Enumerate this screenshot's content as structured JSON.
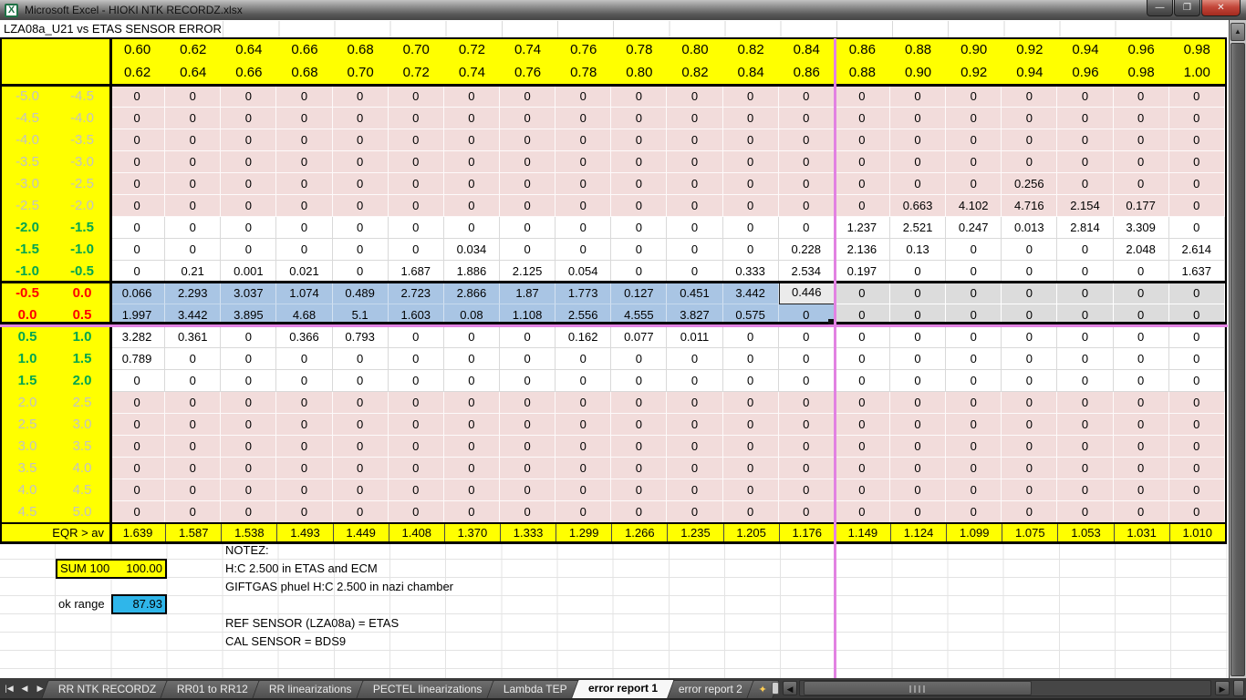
{
  "window": {
    "title": "Microsoft Excel - HIOKI NTK RECORDZ.xlsx",
    "minimize": "—",
    "restore": "❐",
    "close": "✕"
  },
  "sheet_title": "LZA08a_U21 vs ETAS SENSOR ERROR",
  "colors": {
    "header_yellow": "#ffff00",
    "zone_pink": "#f2dcdb",
    "selection_blue": "#a9c5e4",
    "inactive_gray": "#dcdcdc",
    "ok_cyan": "#2fb6ea",
    "pagebreak_magenta": "#e282e2",
    "label_gray": "#c3c3c3",
    "label_green": "#00a550",
    "label_red": "#fd0000"
  },
  "table": {
    "col_headers_top": [
      "0.60",
      "0.62",
      "0.64",
      "0.66",
      "0.68",
      "0.70",
      "0.72",
      "0.74",
      "0.76",
      "0.78",
      "0.80",
      "0.82",
      "0.84",
      "0.86",
      "0.88",
      "0.90",
      "0.92",
      "0.94",
      "0.96",
      "0.98"
    ],
    "col_headers_bottom": [
      "0.62",
      "0.64",
      "0.66",
      "0.68",
      "0.70",
      "0.72",
      "0.74",
      "0.76",
      "0.78",
      "0.80",
      "0.82",
      "0.84",
      "0.86",
      "0.88",
      "0.90",
      "0.92",
      "0.94",
      "0.96",
      "0.98",
      "1.00"
    ],
    "split_after_col": 13,
    "rows": [
      {
        "from": "-5.0",
        "to": "-4.5",
        "zone": "pink",
        "label_color": "gray",
        "values": [
          "0",
          "0",
          "0",
          "0",
          "0",
          "0",
          "0",
          "0",
          "0",
          "0",
          "0",
          "0",
          "0",
          "0",
          "0",
          "0",
          "0",
          "0",
          "0",
          "0"
        ]
      },
      {
        "from": "-4.5",
        "to": "-4.0",
        "zone": "pink",
        "label_color": "gray",
        "values": [
          "0",
          "0",
          "0",
          "0",
          "0",
          "0",
          "0",
          "0",
          "0",
          "0",
          "0",
          "0",
          "0",
          "0",
          "0",
          "0",
          "0",
          "0",
          "0",
          "0"
        ]
      },
      {
        "from": "-4.0",
        "to": "-3.5",
        "zone": "pink",
        "label_color": "gray",
        "values": [
          "0",
          "0",
          "0",
          "0",
          "0",
          "0",
          "0",
          "0",
          "0",
          "0",
          "0",
          "0",
          "0",
          "0",
          "0",
          "0",
          "0",
          "0",
          "0",
          "0"
        ]
      },
      {
        "from": "-3.5",
        "to": "-3.0",
        "zone": "pink",
        "label_color": "gray",
        "values": [
          "0",
          "0",
          "0",
          "0",
          "0",
          "0",
          "0",
          "0",
          "0",
          "0",
          "0",
          "0",
          "0",
          "0",
          "0",
          "0",
          "0",
          "0",
          "0",
          "0"
        ]
      },
      {
        "from": "-3.0",
        "to": "-2.5",
        "zone": "pink",
        "label_color": "gray",
        "values": [
          "0",
          "0",
          "0",
          "0",
          "0",
          "0",
          "0",
          "0",
          "0",
          "0",
          "0",
          "0",
          "0",
          "0",
          "0",
          "0",
          "0.256",
          "0",
          "0",
          "0"
        ]
      },
      {
        "from": "-2.5",
        "to": "-2.0",
        "zone": "pink",
        "label_color": "gray",
        "values": [
          "0",
          "0",
          "0",
          "0",
          "0",
          "0",
          "0",
          "0",
          "0",
          "0",
          "0",
          "0",
          "0",
          "0",
          "0.663",
          "4.102",
          "4.716",
          "2.154",
          "0.177",
          "0"
        ]
      },
      {
        "from": "-2.0",
        "to": "-1.5",
        "zone": "white",
        "label_color": "green",
        "values": [
          "0",
          "0",
          "0",
          "0",
          "0",
          "0",
          "0",
          "0",
          "0",
          "0",
          "0",
          "0",
          "0",
          "1.237",
          "2.521",
          "0.247",
          "0.013",
          "2.814",
          "3.309",
          "0"
        ]
      },
      {
        "from": "-1.5",
        "to": "-1.0",
        "zone": "white",
        "label_color": "green",
        "values": [
          "0",
          "0",
          "0",
          "0",
          "0",
          "0",
          "0.034",
          "0",
          "0",
          "0",
          "0",
          "0",
          "0.228",
          "2.136",
          "0.13",
          "0",
          "0",
          "0",
          "2.048",
          "2.614"
        ]
      },
      {
        "from": "-1.0",
        "to": "-0.5",
        "zone": "white",
        "label_color": "green",
        "values": [
          "0",
          "0.21",
          "0.001",
          "0.021",
          "0",
          "1.687",
          "1.886",
          "2.125",
          "0.054",
          "0",
          "0",
          "0.333",
          "2.534",
          "0.197",
          "0",
          "0",
          "0",
          "0",
          "0",
          "1.637"
        ]
      },
      {
        "from": "-0.5",
        "to": "0.0",
        "zone": "sel",
        "label_color": "red",
        "values": [
          "0.066",
          "2.293",
          "3.037",
          "1.074",
          "0.489",
          "2.723",
          "2.866",
          "1.87",
          "1.773",
          "0.127",
          "0.451",
          "3.442",
          "0.446",
          "0",
          "0",
          "0",
          "0",
          "0",
          "0",
          "0"
        ]
      },
      {
        "from": "0.0",
        "to": "0.5",
        "zone": "sel",
        "label_color": "red",
        "values": [
          "1.997",
          "3.442",
          "3.895",
          "4.68",
          "5.1",
          "1.603",
          "0.08",
          "1.108",
          "2.556",
          "4.555",
          "3.827",
          "0.575",
          "0",
          "0",
          "0",
          "0",
          "0",
          "0",
          "0",
          "0"
        ]
      },
      {
        "from": "0.5",
        "to": "1.0",
        "zone": "white",
        "label_color": "green",
        "values": [
          "3.282",
          "0.361",
          "0",
          "0.366",
          "0.793",
          "0",
          "0",
          "0",
          "0.162",
          "0.077",
          "0.011",
          "0",
          "0",
          "0",
          "0",
          "0",
          "0",
          "0",
          "0",
          "0"
        ]
      },
      {
        "from": "1.0",
        "to": "1.5",
        "zone": "white",
        "label_color": "green",
        "values": [
          "0.789",
          "0",
          "0",
          "0",
          "0",
          "0",
          "0",
          "0",
          "0",
          "0",
          "0",
          "0",
          "0",
          "0",
          "0",
          "0",
          "0",
          "0",
          "0",
          "0"
        ]
      },
      {
        "from": "1.5",
        "to": "2.0",
        "zone": "white",
        "label_color": "green",
        "values": [
          "0",
          "0",
          "0",
          "0",
          "0",
          "0",
          "0",
          "0",
          "0",
          "0",
          "0",
          "0",
          "0",
          "0",
          "0",
          "0",
          "0",
          "0",
          "0",
          "0"
        ]
      },
      {
        "from": "2.0",
        "to": "2.5",
        "zone": "pink",
        "label_color": "gray",
        "values": [
          "0",
          "0",
          "0",
          "0",
          "0",
          "0",
          "0",
          "0",
          "0",
          "0",
          "0",
          "0",
          "0",
          "0",
          "0",
          "0",
          "0",
          "0",
          "0",
          "0"
        ]
      },
      {
        "from": "2.5",
        "to": "3.0",
        "zone": "pink",
        "label_color": "gray",
        "values": [
          "0",
          "0",
          "0",
          "0",
          "0",
          "0",
          "0",
          "0",
          "0",
          "0",
          "0",
          "0",
          "0",
          "0",
          "0",
          "0",
          "0",
          "0",
          "0",
          "0"
        ]
      },
      {
        "from": "3.0",
        "to": "3.5",
        "zone": "pink",
        "label_color": "gray",
        "values": [
          "0",
          "0",
          "0",
          "0",
          "0",
          "0",
          "0",
          "0",
          "0",
          "0",
          "0",
          "0",
          "0",
          "0",
          "0",
          "0",
          "0",
          "0",
          "0",
          "0"
        ]
      },
      {
        "from": "3.5",
        "to": "4.0",
        "zone": "pink",
        "label_color": "gray",
        "values": [
          "0",
          "0",
          "0",
          "0",
          "0",
          "0",
          "0",
          "0",
          "0",
          "0",
          "0",
          "0",
          "0",
          "0",
          "0",
          "0",
          "0",
          "0",
          "0",
          "0"
        ]
      },
      {
        "from": "4.0",
        "to": "4.5",
        "zone": "pink",
        "label_color": "gray",
        "values": [
          "0",
          "0",
          "0",
          "0",
          "0",
          "0",
          "0",
          "0",
          "0",
          "0",
          "0",
          "0",
          "0",
          "0",
          "0",
          "0",
          "0",
          "0",
          "0",
          "0"
        ]
      },
      {
        "from": "4.5",
        "to": "5.0",
        "zone": "pink",
        "label_color": "gray",
        "values": [
          "0",
          "0",
          "0",
          "0",
          "0",
          "0",
          "0",
          "0",
          "0",
          "0",
          "0",
          "0",
          "0",
          "0",
          "0",
          "0",
          "0",
          "0",
          "0",
          "0"
        ]
      }
    ],
    "selection": {
      "rows": [
        9,
        10
      ],
      "col_start": 0,
      "col_end": 12,
      "active_row": 9,
      "active_col": 12
    },
    "footer": {
      "label": "EQR > av",
      "values": [
        "1.639",
        "1.587",
        "1.538",
        "1.493",
        "1.449",
        "1.408",
        "1.370",
        "1.333",
        "1.299",
        "1.266",
        "1.235",
        "1.205",
        "1.176",
        "1.149",
        "1.124",
        "1.099",
        "1.075",
        "1.053",
        "1.031",
        "1.010"
      ]
    }
  },
  "summary": {
    "sum_label": "SUM 100",
    "sum_value": "100.00",
    "ok_label": "ok range",
    "ok_value": "87.93"
  },
  "notes": [
    "NOTEZ:",
    "H:C 2.500 in ETAS and ECM",
    "GIFTGAS phuel H:C 2.500 in nazi chamber",
    "",
    "REF SENSOR (LZA08a) = ETAS",
    "CAL SENSOR = BDS9"
  ],
  "tabbar": {
    "nav": [
      "|◀",
      "◀",
      "▶",
      "▶|"
    ],
    "tabs": [
      {
        "label": "RR NTK RECORDZ",
        "active": false
      },
      {
        "label": "RR01 to RR12",
        "active": false
      },
      {
        "label": "RR linearizations",
        "active": false
      },
      {
        "label": "PECTEL linearizations",
        "active": false
      },
      {
        "label": "Lambda TEP",
        "active": false
      },
      {
        "label": "error report 1",
        "active": true
      },
      {
        "label": "error report 2",
        "active": false
      }
    ],
    "insert_tab_icon": "✦",
    "scroll_left": "◀",
    "scroll_right": "▶",
    "scroll_up": "▲"
  }
}
